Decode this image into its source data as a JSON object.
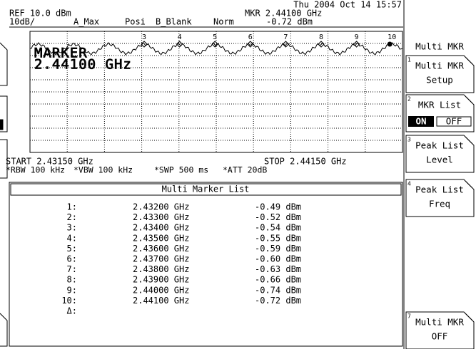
{
  "header": {
    "datetime": "Thu 2004 Oct 14 15:57",
    "ref": "REF 10.0 dBm",
    "scale": "10dB/",
    "a_max": "A_Max",
    "posi": "Posi",
    "b_blank": "B_Blank",
    "norm": "Norm",
    "mkr_freq": "MKR 2.44100 GHz",
    "mkr_level": "-0.72 dBm"
  },
  "graph": {
    "marker_label": "MARKER",
    "marker_freq": "2.44100 GHz",
    "marker_numbers": [
      "3",
      "4",
      "5",
      "6",
      "7",
      "8",
      "9",
      "10"
    ]
  },
  "footer": {
    "start": "START 2.43150 GHz",
    "stop": "STOP 2.44150 GHz",
    "rbw": "*RBW 100 kHz",
    "vbw": "*VBW 100 kHz",
    "swp": "*SWP 500 ms",
    "att": "*ATT 20dB"
  },
  "table": {
    "title": "Multi Marker List",
    "rows": [
      [
        "1:",
        "2.43200 GHz",
        "-0.49 dBm"
      ],
      [
        "2:",
        "2.43300 GHz",
        "-0.52 dBm"
      ],
      [
        "3:",
        "2.43400 GHz",
        "-0.54 dBm"
      ],
      [
        "4:",
        "2.43500 GHz",
        "-0.55 dBm"
      ],
      [
        "5:",
        "2.43600 GHz",
        "-0.59 dBm"
      ],
      [
        "6:",
        "2.43700 GHz",
        "-0.60 dBm"
      ],
      [
        "7:",
        "2.43800 GHz",
        "-0.63 dBm"
      ],
      [
        "8:",
        "2.43900 GHz",
        "-0.66 dBm"
      ],
      [
        "9:",
        "2.44000 GHz",
        "-0.74 dBm"
      ],
      [
        "10:",
        "2.44100 GHz",
        "-0.72 dBm"
      ],
      [
        "Δ:"
      ]
    ]
  },
  "softkeys": {
    "title": "Multi MKR",
    "keys": [
      {
        "number": "1",
        "lines": [
          "Multi MKR",
          "Setup"
        ]
      },
      {
        "number": "2",
        "lines": [
          "MKR List"
        ],
        "on": "ON",
        "off": "OFF"
      },
      {
        "number": "3",
        "lines": [
          "Peak List",
          "Level"
        ]
      },
      {
        "number": "4",
        "lines": [
          "Peak List",
          "Freq"
        ]
      },
      {
        "number": "7",
        "lines": [
          "Multi MKR",
          "OFF"
        ]
      }
    ]
  }
}
